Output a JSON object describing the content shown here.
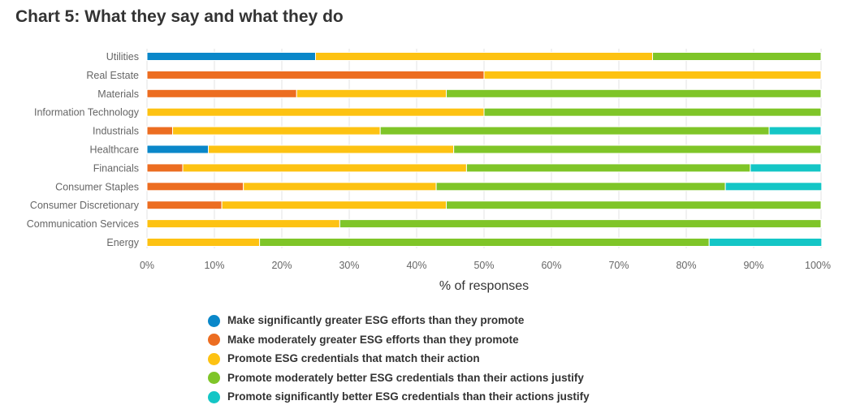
{
  "title": "Chart 5: What they say and what they do",
  "chart_data": {
    "type": "bar",
    "orientation": "horizontal",
    "stacked": true,
    "title": "Chart 5: What they say and what they do",
    "xlabel": "% of responses",
    "ylabel": "",
    "xlim": [
      0,
      100
    ],
    "x_ticks": [
      "0%",
      "10%",
      "20%",
      "30%",
      "40%",
      "50%",
      "60%",
      "70%",
      "80%",
      "90%",
      "100%"
    ],
    "grid": "vertical gridlines",
    "legend_position": "bottom",
    "categories": [
      "Utilities",
      "Real Estate",
      "Materials",
      "Information Technology",
      "Industrials",
      "Healthcare",
      "Financials",
      "Consumer Staples",
      "Consumer Discretionary",
      "Communication Services",
      "Energy"
    ],
    "series": [
      {
        "name": "Make significantly greater ESG efforts than they promote",
        "color": "#0a87c9",
        "values": [
          25,
          0,
          0,
          0,
          0,
          9.1,
          0,
          0,
          0,
          0,
          0
        ]
      },
      {
        "name": "Make moderately greater ESG efforts than they promote",
        "color": "#ec6d21",
        "values": [
          0,
          50,
          22.2,
          0,
          3.8,
          0,
          5.3,
          14.3,
          11.1,
          0,
          0
        ]
      },
      {
        "name": "Promote ESG credentials that match their action",
        "color": "#fdc212",
        "values": [
          50,
          50,
          22.2,
          50,
          30.8,
          36.4,
          42.1,
          28.6,
          33.3,
          28.6,
          16.7
        ]
      },
      {
        "name": "Promote moderately better ESG credentials than their actions justify",
        "color": "#7fc528",
        "values": [
          25,
          0,
          55.6,
          50,
          57.7,
          54.5,
          42.1,
          42.9,
          55.6,
          71.4,
          66.7
        ]
      },
      {
        "name": "Promote significantly better ESG credentials than their actions justify",
        "color": "#14c6c6",
        "values": [
          0,
          0,
          0,
          0,
          7.7,
          0,
          10.5,
          14.3,
          0,
          0,
          16.7
        ]
      }
    ]
  }
}
